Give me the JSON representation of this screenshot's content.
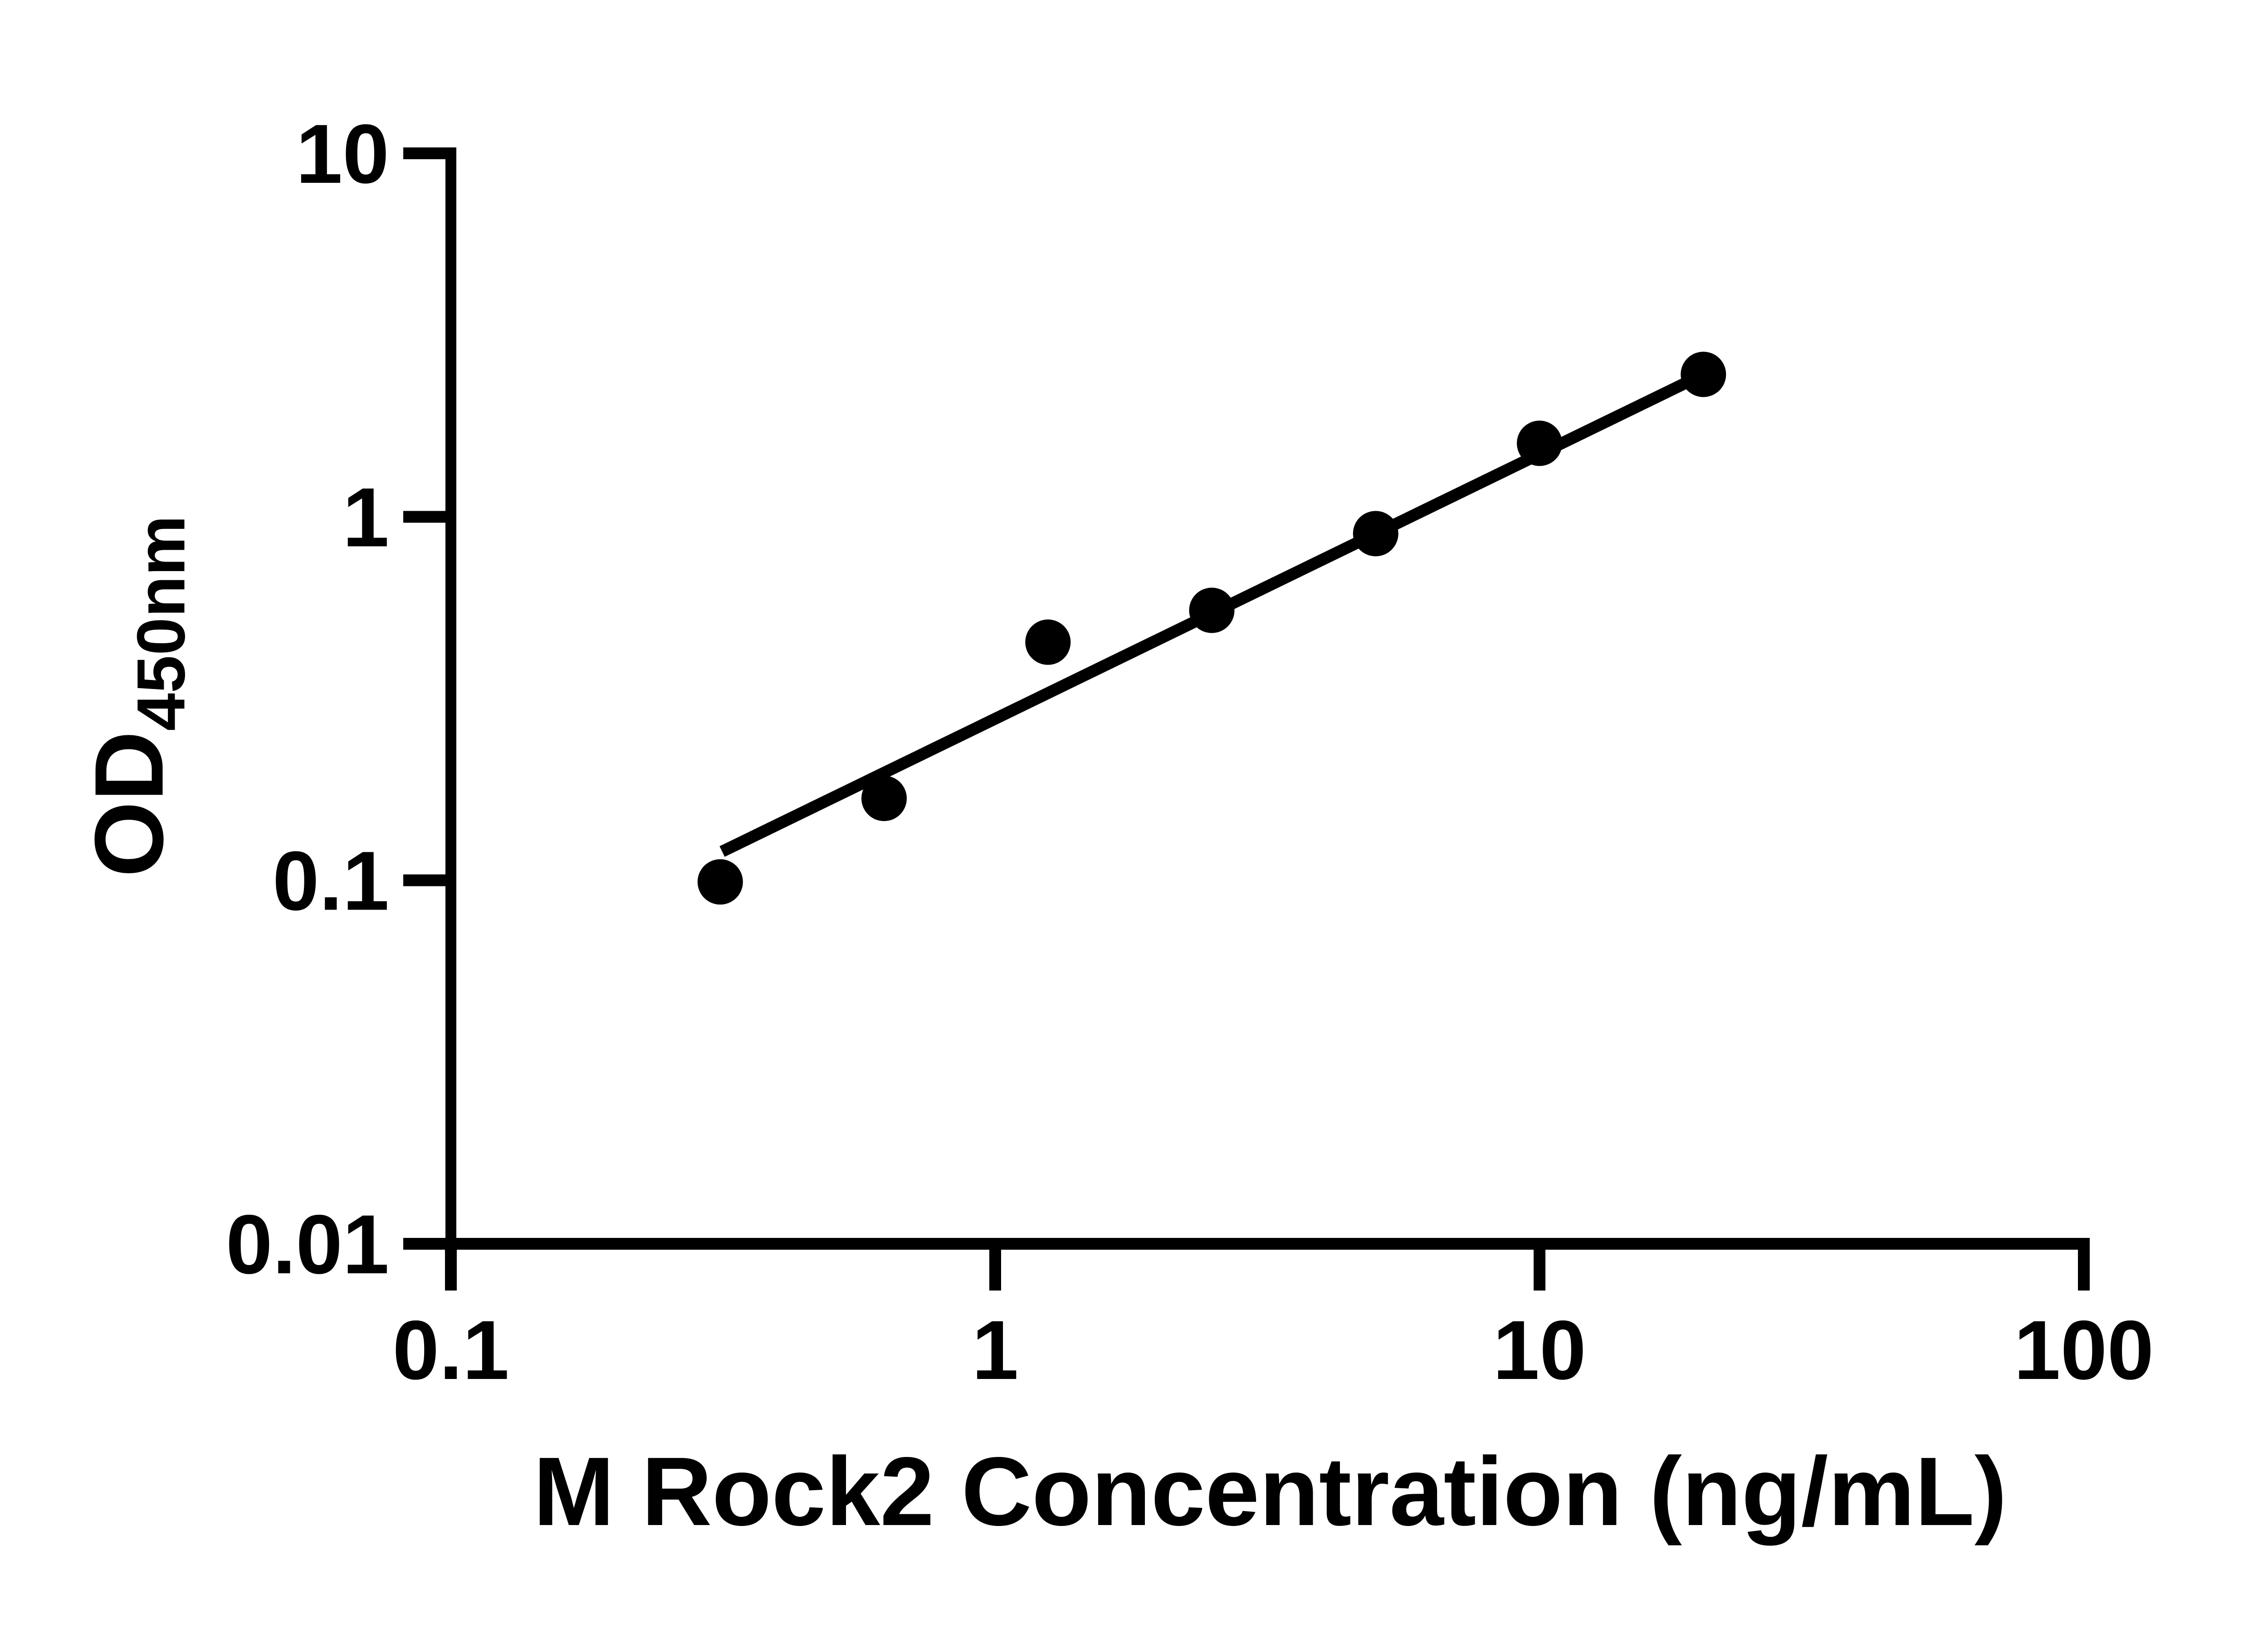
{
  "chart_data": {
    "type": "scatter",
    "title": "",
    "xlabel": {
      "text": "M Rock2 Concentration (ng/mL)"
    },
    "ylabel": {
      "main": "OD",
      "subscript": "450nm"
    },
    "x_scale": "log",
    "y_scale": "log",
    "xlim": [
      0.1,
      100
    ],
    "ylim": [
      0.01,
      10
    ],
    "grid": false,
    "legend": false,
    "colors": {
      "foreground": "#000000",
      "background": "#ffffff"
    },
    "x_ticks": [
      {
        "value": 0.1,
        "label": "0.1"
      },
      {
        "value": 1,
        "label": "1"
      },
      {
        "value": 10,
        "label": "10"
      },
      {
        "value": 100,
        "label": "100"
      }
    ],
    "y_ticks": [
      {
        "value": 10,
        "label": "10"
      },
      {
        "value": 1,
        "label": "1"
      },
      {
        "value": 0.1,
        "label": "0.1"
      },
      {
        "value": 0.01,
        "label": "0.01"
      }
    ],
    "series": [
      {
        "name": "standard-curve-points",
        "marker": "circle",
        "color": "#000000",
        "points": [
          {
            "x": 0.3125,
            "y": 0.099
          },
          {
            "x": 0.625,
            "y": 0.168
          },
          {
            "x": 1.25,
            "y": 0.452
          },
          {
            "x": 2.5,
            "y": 0.553
          },
          {
            "x": 5,
            "y": 0.899
          },
          {
            "x": 10,
            "y": 1.593
          },
          {
            "x": 20,
            "y": 2.465
          }
        ]
      }
    ],
    "fit_line": {
      "x1": 0.315,
      "y1": 0.12,
      "x2": 20,
      "y2": 2.465,
      "color": "#000000"
    }
  }
}
